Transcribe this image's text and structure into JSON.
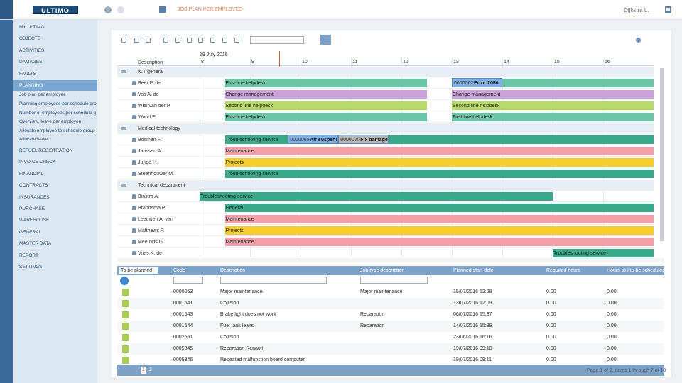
{
  "topbar": {
    "logo": "ULTIMO",
    "breadcrumb": "JOB PLAN PER EMPLOYEE",
    "user": "Dijkstra L."
  },
  "menu": [
    {
      "label": "MY ULTIMO"
    },
    {
      "label": "OBJECTS"
    },
    {
      "label": "ACTIVITIES"
    },
    {
      "label": "DAMAGES"
    },
    {
      "label": "FAULTS"
    },
    {
      "label": "PLANNING",
      "active": true,
      "items": [
        "Job plan per employee",
        "Planning employees per schedule gro",
        "Number of employees per schedule g",
        "Overview, leave per employee",
        "Allocate employee to schedule group",
        "Allocate leave"
      ]
    },
    {
      "label": "REFUEL REGISTRATION"
    },
    {
      "label": "INVOICE CHECK"
    },
    {
      "label": "FINANCIAL"
    },
    {
      "label": "CONTRACTS"
    },
    {
      "label": "INSURANCES"
    },
    {
      "label": "PURCHASE"
    },
    {
      "label": "WAREHOUSE"
    },
    {
      "label": "GENERAL"
    },
    {
      "label": "MASTER DATA"
    },
    {
      "label": "REPORT"
    },
    {
      "label": "SETTINGS"
    }
  ],
  "gantt": {
    "date": "19 July 2016",
    "description_header": "Description",
    "hours": [
      8,
      9,
      10,
      11,
      12,
      13,
      14,
      15,
      16
    ],
    "rows": [
      {
        "group": "ICT general"
      },
      {
        "name": "Beer P. de",
        "bars": [
          {
            "label": "First line helpdesk",
            "start": 8.5,
            "end": 12.5,
            "color": "#6cc4a6"
          },
          {
            "start": 13,
            "end": 17,
            "color": "#6cc4a6"
          }
        ],
        "jobs": [
          {
            "code": "0000062",
            "desc": "Error 2080",
            "start": 13,
            "end": 14
          }
        ]
      },
      {
        "name": "Vos A. de",
        "bars": [
          {
            "label": "Change management",
            "start": 8.5,
            "end": 12.5,
            "color": "#c9a3d9"
          },
          {
            "label": "Change management",
            "start": 13,
            "end": 17,
            "color": "#c9a3d9"
          }
        ]
      },
      {
        "name": "Wiel van der P.",
        "bars": [
          {
            "label": "Second line helpdesk",
            "start": 8.5,
            "end": 12.5,
            "color": "#b9d96b"
          },
          {
            "label": "Second line helpdesk",
            "start": 13,
            "end": 17,
            "color": "#b9d96b"
          }
        ]
      },
      {
        "name": "Woud E.",
        "bars": [
          {
            "label": "First line helpdesk",
            "start": 8.5,
            "end": 12.5,
            "color": "#6cc4a6"
          },
          {
            "label": "First line helpdesk",
            "start": 13,
            "end": 17,
            "color": "#6cc4a6"
          }
        ]
      },
      {
        "group": "Medical technology"
      },
      {
        "name": "Bosman F.",
        "bars": [
          {
            "label": "Troubleshooting service",
            "start": 8.5,
            "end": 17,
            "color": "#3aa98a"
          }
        ],
        "jobs": [
          {
            "code": "0000065",
            "desc": "Air suspensio",
            "start": 9.75,
            "end": 10.75
          },
          {
            "code": "0000070",
            "desc": "Fix damage",
            "start": 10.75,
            "end": 11.75
          }
        ]
      },
      {
        "name": "Janssen A.",
        "bars": [
          {
            "label": "Maintenance",
            "start": 8.5,
            "end": 17,
            "color": "#f2a0a9"
          }
        ]
      },
      {
        "name": "Junge H.",
        "bars": [
          {
            "label": "Projects",
            "start": 8.5,
            "end": 17,
            "color": "#f7cd2e"
          }
        ]
      },
      {
        "name": "Steenhouwer M.",
        "bars": [
          {
            "label": "Troubleshooting service",
            "start": 8.5,
            "end": 17,
            "color": "#3aa98a"
          }
        ]
      },
      {
        "group": "Technical department"
      },
      {
        "name": "Binstra A.",
        "bars": [
          {
            "label": "Troubleshooting service",
            "start": 8,
            "end": 15,
            "color": "#3aa98a"
          }
        ]
      },
      {
        "name": "Brandsma P.",
        "bars": [
          {
            "label": "General",
            "start": 8.5,
            "end": 17,
            "color": "#3aa98a"
          }
        ]
      },
      {
        "name": "Leeuwen A. van",
        "bars": [
          {
            "label": "Maintenance",
            "start": 8.5,
            "end": 17,
            "color": "#f2a0a9"
          }
        ]
      },
      {
        "name": "Matthews P.",
        "bars": [
          {
            "label": "Projects",
            "start": 8.5,
            "end": 17,
            "color": "#f7cd2e"
          }
        ]
      },
      {
        "name": "Meeuwis G.",
        "bars": [
          {
            "label": "Maintenance",
            "start": 8.5,
            "end": 17,
            "color": "#f2a0a9"
          }
        ]
      },
      {
        "name": "Vries K. de",
        "bars": [
          {
            "label": "Troubleshooting service",
            "start": 15,
            "end": 17,
            "color": "#3aa98a"
          }
        ]
      }
    ]
  },
  "table": {
    "filter": "To be planned",
    "columns": [
      "Code",
      "Description",
      "Job type description",
      "Planned start date",
      "Required hours",
      "Hours still to be scheduled"
    ],
    "rows": [
      [
        "0000063",
        "Major maintenance",
        "Major maintenance",
        "15/07/2016 12:28",
        "0.00",
        "0.00"
      ],
      [
        "0001541",
        "Collision",
        null,
        "13/07/2016 12:09",
        "0.00",
        "0.00"
      ],
      [
        "0001543",
        "Brake light does not work",
        "Reparation",
        "06/07/2016 15:37",
        "0.00",
        "0.00"
      ],
      [
        "0001544",
        "Fuel tank leaks",
        "Reparation",
        "14/07/2016 15:39",
        "0.00",
        "0.00"
      ],
      [
        "0002661",
        "Collision",
        null,
        "23/06/2016 16:16",
        "0.00",
        "0.00"
      ],
      [
        "0005345",
        "Reparation Renault",
        null,
        "19/07/2016 09:10",
        "0.00",
        "0.00"
      ],
      [
        "0005346",
        "Repeated malfunction board computer",
        null,
        "19/07/2016 09:11",
        "0.00",
        "0.00"
      ]
    ],
    "pager": {
      "pages": [
        "1",
        "2"
      ],
      "summary": "Page 1 of 2, items 1 through 7 of 10"
    }
  }
}
